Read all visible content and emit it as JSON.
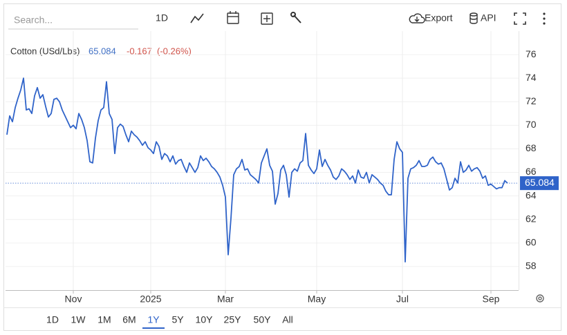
{
  "toolbar": {
    "search_placeholder": "Search...",
    "interval": "1D",
    "export": "Export",
    "api": "API"
  },
  "ranges": [
    "1D",
    "1W",
    "1M",
    "6M",
    "1Y",
    "5Y",
    "10Y",
    "25Y",
    "50Y",
    "All"
  ],
  "active_range": "1Y",
  "chart_data": {
    "type": "line",
    "legend": {
      "name": "Cotton (USd/Lbs)",
      "change": -0.167,
      "change_pct": {
        "value": -0.26,
        "label": "(-0.26%)"
      }
    },
    "categories": [
      null,
      null,
      null,
      null,
      null,
      null,
      null,
      null,
      null,
      null,
      null,
      null,
      null,
      null,
      null,
      null,
      null,
      null,
      null,
      null,
      null,
      null,
      null,
      null,
      "Nov",
      null,
      null,
      null,
      null,
      null,
      null,
      null,
      null,
      null,
      null,
      null,
      null,
      null,
      null,
      null,
      null,
      null,
      null,
      null,
      null,
      null,
      null,
      null,
      null,
      null,
      null,
      null,
      "2025",
      null,
      null,
      null,
      null,
      null,
      null,
      null,
      null,
      null,
      null,
      null,
      null,
      null,
      null,
      null,
      null,
      null,
      null,
      null,
      null,
      null,
      null,
      null,
      null,
      null,
      null,
      "Mar",
      null,
      null,
      null,
      null,
      null,
      null,
      null,
      null,
      null,
      null,
      null,
      null,
      null,
      null,
      null,
      null,
      null,
      null,
      null,
      null,
      null,
      null,
      null,
      null,
      null,
      null,
      null,
      null,
      null,
      null,
      null,
      null,
      "May",
      null,
      null,
      null,
      null,
      null,
      null,
      null,
      null,
      null,
      null,
      null,
      null,
      null,
      null,
      null,
      null,
      null,
      null,
      null,
      null,
      null,
      null,
      null,
      null,
      null,
      null,
      null,
      null,
      null,
      null,
      "Jul",
      null,
      null,
      null,
      null,
      null,
      null,
      null,
      null,
      null,
      null,
      null,
      null,
      null,
      null,
      null,
      null,
      null,
      null,
      null,
      null,
      null,
      null,
      null,
      null,
      null,
      null,
      null,
      null,
      null,
      null,
      null,
      "Sep",
      null,
      null,
      null,
      null,
      null,
      null
    ],
    "series": [
      {
        "name": "Cotton (USd/Lbs)",
        "color": "#2f63c9",
        "values": [
          69.2,
          70.8,
          70.3,
          71.5,
          72.3,
          73.0,
          74.0,
          71.3,
          71.4,
          71.0,
          72.5,
          73.2,
          72.3,
          72.6,
          71.6,
          70.7,
          71.0,
          72.2,
          72.3,
          72.0,
          71.3,
          70.8,
          70.3,
          69.8,
          70.0,
          69.7,
          71.0,
          70.5,
          69.8,
          68.7,
          66.9,
          66.8,
          68.9,
          70.4,
          71.3,
          71.5,
          73.7,
          71.0,
          70.5,
          67.6,
          69.8,
          70.1,
          69.9,
          69.2,
          68.6,
          69.5,
          69.2,
          69.0,
          68.7,
          68.3,
          68.6,
          68.1,
          67.9,
          67.6,
          68.6,
          68.2,
          67.1,
          67.6,
          67.4,
          66.9,
          67.4,
          66.7,
          67.0,
          67.1,
          66.5,
          66.0,
          66.8,
          66.4,
          66.0,
          66.4,
          67.4,
          67.0,
          67.2,
          66.9,
          66.5,
          66.3,
          66.0,
          65.6,
          64.9,
          63.9,
          59.0,
          62.1,
          65.8,
          66.3,
          66.5,
          67.1,
          66.2,
          66.3,
          65.8,
          65.6,
          65.4,
          65.1,
          66.8,
          67.4,
          68.0,
          66.6,
          66.1,
          63.3,
          64.2,
          66.2,
          66.6,
          65.8,
          63.9,
          66.0,
          66.3,
          66.1,
          66.8,
          67.0,
          69.3,
          66.6,
          66.2,
          65.9,
          66.3,
          67.9,
          66.5,
          67.1,
          66.6,
          66.2,
          65.6,
          65.4,
          65.7,
          66.3,
          66.1,
          65.8,
          65.4,
          65.7,
          65.1,
          66.2,
          65.6,
          65.5,
          66.0,
          65.1,
          65.8,
          65.6,
          65.4,
          65.1,
          64.9,
          64.4,
          64.1,
          64.1,
          67.1,
          68.6,
          68.0,
          67.7,
          58.4,
          65.5,
          66.3,
          66.4,
          66.6,
          67.0,
          66.5,
          66.5,
          66.6,
          67.1,
          67.3,
          66.9,
          66.7,
          66.8,
          66.3,
          65.4,
          64.5,
          64.7,
          65.5,
          65.1,
          66.9,
          66.0,
          66.2,
          66.6,
          66.1,
          66.3,
          66.4,
          66.1,
          65.5,
          65.7,
          64.9,
          65.0,
          64.8,
          64.6,
          64.7,
          64.7,
          65.3,
          65.084
        ]
      }
    ],
    "ylim": [
      56,
      78
    ],
    "yticks": [
      58,
      60,
      62,
      64,
      66,
      68,
      70,
      72,
      74,
      76
    ],
    "grid": true,
    "last_value_line": true,
    "change_color": "#d0534a"
  }
}
